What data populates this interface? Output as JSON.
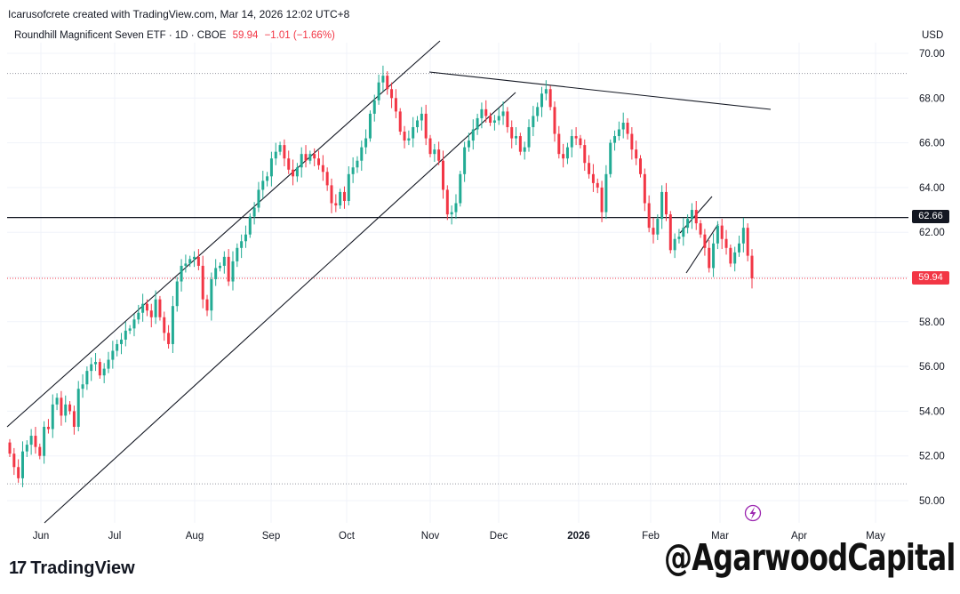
{
  "credit": "Icarusofcrete created with TradingView.com, Mar 14, 2026 12:02 UTC+8",
  "header": {
    "symbol_line": "Roundhill Magnificent Seven ETF · 1D · CBOE",
    "last_price": "59.94",
    "change": "−1.01 (−1.66%)",
    "currency": "USD"
  },
  "brand": "TradingView",
  "watermark": "@AgarwoodCapital",
  "tags": {
    "horizontal_level": "62.66",
    "last_price": "59.94"
  },
  "colors": {
    "up": "#22ab94",
    "down": "#f23645",
    "line": "#131722",
    "grid": "#f0f3fa",
    "bolt": "#9c27b0"
  },
  "icons": {
    "bolt": "bolt-icon"
  },
  "chart_data": {
    "type": "candlestick",
    "y_axis": {
      "ticks": [
        "50.00",
        "52.00",
        "54.00",
        "56.00",
        "58.00",
        "60.00",
        "62.00",
        "64.00",
        "66.00",
        "68.00",
        "70.00"
      ],
      "range": [
        49.0,
        71.0
      ]
    },
    "x_axis": {
      "labels": [
        "Jun",
        "Jul",
        "Aug",
        "Sep",
        "Oct",
        "Nov",
        "Dec",
        "2026",
        "Feb",
        "Mar",
        "Apr",
        "May"
      ]
    },
    "horizontal_level": 62.66,
    "dotted_levels": [
      69.1,
      50.75
    ],
    "last_price": 59.94,
    "closes": [
      52.1,
      51.5,
      51.0,
      52.2,
      52.5,
      52.9,
      52.4,
      52.0,
      53.3,
      53.2,
      54.3,
      54.6,
      53.8,
      54.3,
      54.0,
      53.3,
      55.0,
      55.2,
      55.8,
      56.1,
      56.2,
      55.6,
      55.9,
      56.3,
      56.7,
      57.0,
      57.2,
      57.6,
      57.7,
      58.1,
      58.4,
      58.8,
      58.5,
      58.2,
      59.0,
      58.2,
      57.5,
      57.0,
      58.7,
      59.8,
      60.5,
      60.6,
      60.8,
      60.9,
      60.5,
      59.0,
      58.5,
      59.9,
      60.4,
      60.5,
      60.9,
      59.8,
      60.7,
      61.3,
      61.6,
      61.9,
      62.7,
      63.1,
      63.9,
      64.3,
      64.5,
      65.3,
      65.6,
      65.9,
      65.3,
      64.8,
      64.5,
      64.9,
      65.5,
      65.2,
      65.5,
      65.3,
      65.0,
      64.7,
      64.1,
      63.3,
      63.2,
      63.8,
      63.4,
      64.6,
      64.9,
      65.2,
      65.8,
      66.2,
      67.3,
      67.9,
      68.7,
      69.0,
      68.4,
      68.0,
      67.4,
      66.5,
      66.1,
      66.2,
      66.7,
      67.0,
      67.3,
      66.2,
      65.5,
      65.7,
      65.2,
      63.9,
      62.8,
      62.9,
      63.3,
      64.6,
      65.8,
      66.1,
      66.6,
      67.1,
      67.5,
      67.2,
      66.9,
      67.0,
      67.2,
      67.4,
      66.7,
      66.2,
      66.3,
      65.6,
      65.8,
      66.7,
      67.2,
      67.6,
      68.2,
      68.4,
      67.6,
      66.4,
      65.5,
      65.3,
      65.8,
      66.3,
      66.2,
      65.9,
      65.1,
      64.6,
      64.2,
      64.0,
      62.9,
      64.6,
      66.0,
      66.3,
      66.6,
      66.9,
      66.4,
      65.7,
      65.3,
      64.6,
      63.3,
      62.2,
      61.9,
      62.6,
      63.8,
      62.8,
      61.2,
      61.7,
      61.8,
      62.2,
      62.6,
      63.0,
      62.4,
      61.9,
      61.3,
      60.4,
      61.5,
      62.3,
      61.7,
      61.3,
      60.6,
      61.1,
      61.5,
      62.2,
      60.95,
      59.94
    ]
  }
}
